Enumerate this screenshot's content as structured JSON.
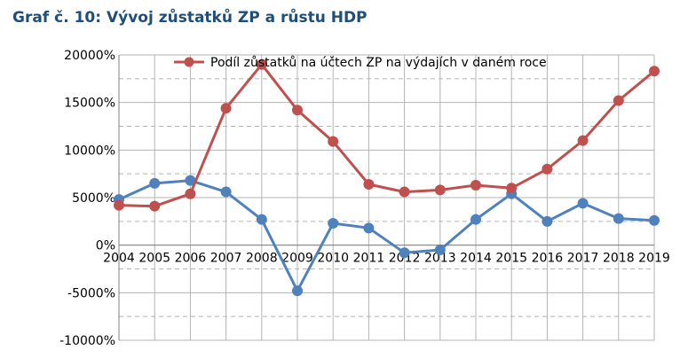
{
  "title": "Graf č. 10: Vývoj zůstatků ZP a růstu HDP",
  "chart_data": {
    "type": "line",
    "x": [
      2004,
      2005,
      2006,
      2007,
      2008,
      2009,
      2010,
      2011,
      2012,
      2013,
      2014,
      2015,
      2016,
      2017,
      2018,
      2019
    ],
    "ylim": [
      -10000,
      20000
    ],
    "y_ticks": [
      -10000,
      -5000,
      0,
      5000,
      10000,
      15000,
      20000
    ],
    "y_tick_labels": [
      "-10000%",
      "-5000%",
      "0%",
      "5000%",
      "10000%",
      "15000%",
      "20000%"
    ],
    "x_tick_labels": [
      "2004",
      "2005",
      "2006",
      "2007",
      "2008",
      "2009",
      "2010",
      "2011",
      "2012",
      "2013",
      "2014",
      "2015",
      "2016",
      "2017",
      "2018",
      "2019"
    ],
    "grid": true,
    "legend_position": "top",
    "series": [
      {
        "name": "Podíl zůstatků na účtech ZP na výdajích v daném roce",
        "color": "#c0504d",
        "values": [
          4200,
          4100,
          5400,
          14400,
          19000,
          14200,
          10900,
          6400,
          5600,
          5800,
          6300,
          6000,
          8000,
          11000,
          15200,
          18300
        ]
      },
      {
        "name": "",
        "color": "#4f81bd",
        "values": [
          4800,
          6500,
          6800,
          5600,
          2700,
          -4800,
          2300,
          1800,
          -800,
          -500,
          2700,
          5400,
          2500,
          4400,
          2800,
          2600
        ]
      }
    ]
  }
}
